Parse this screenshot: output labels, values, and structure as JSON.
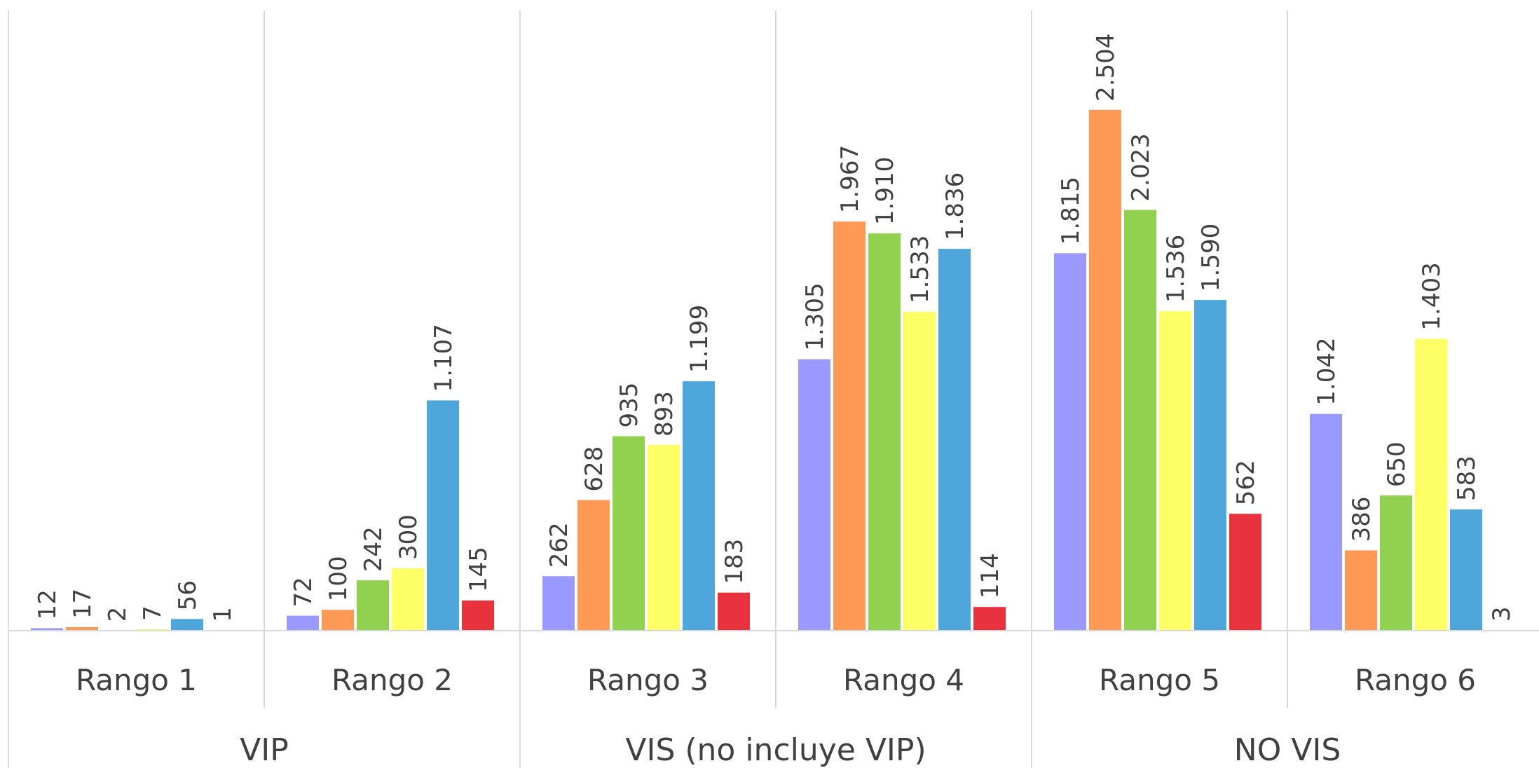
{
  "chart_data": {
    "type": "bar",
    "groups": [
      {
        "label": "VIP",
        "categories": [
          "Rango 1",
          "Rango 2"
        ]
      },
      {
        "label": "VIS (no incluye VIP)",
        "categories": [
          "Rango 3",
          "Rango 4"
        ]
      },
      {
        "label": "NO VIS",
        "categories": [
          "Rango 5",
          "Rango 6"
        ]
      }
    ],
    "categories": [
      "Rango 1",
      "Rango 2",
      "Rango 3",
      "Rango 4",
      "Rango 5",
      "Rango 6"
    ],
    "series": [
      {
        "color": "#9999FF",
        "values": [
          12,
          72,
          262,
          1305,
          1815,
          1042
        ],
        "labels": [
          "12",
          "72",
          "262",
          "1.305",
          "1.815",
          "1.042"
        ]
      },
      {
        "color": "#FF9955",
        "values": [
          17,
          100,
          628,
          1967,
          2504,
          386
        ],
        "labels": [
          "17",
          "100",
          "628",
          "1.967",
          "2.504",
          "386"
        ]
      },
      {
        "color": "#92D050",
        "values": [
          2,
          242,
          935,
          1910,
          2023,
          650
        ],
        "labels": [
          "2",
          "242",
          "935",
          "1.910",
          "2.023",
          "650"
        ]
      },
      {
        "color": "#FFFF66",
        "values": [
          7,
          300,
          893,
          1533,
          1536,
          1403
        ],
        "labels": [
          "7",
          "300",
          "893",
          "1.533",
          "1.536",
          "1.403"
        ]
      },
      {
        "color": "#4FA6DB",
        "values": [
          56,
          1107,
          1199,
          1836,
          1590,
          583
        ],
        "labels": [
          "56",
          "1.107",
          "1.199",
          "1.836",
          "1.590",
          "583"
        ]
      },
      {
        "color": "#E8323E",
        "values": [
          1,
          145,
          183,
          114,
          562,
          3
        ],
        "labels": [
          "1",
          "145",
          "183",
          "114",
          "562",
          "3"
        ]
      }
    ],
    "ylim": [
      0,
      3000
    ],
    "grid": false,
    "legend": "none"
  }
}
